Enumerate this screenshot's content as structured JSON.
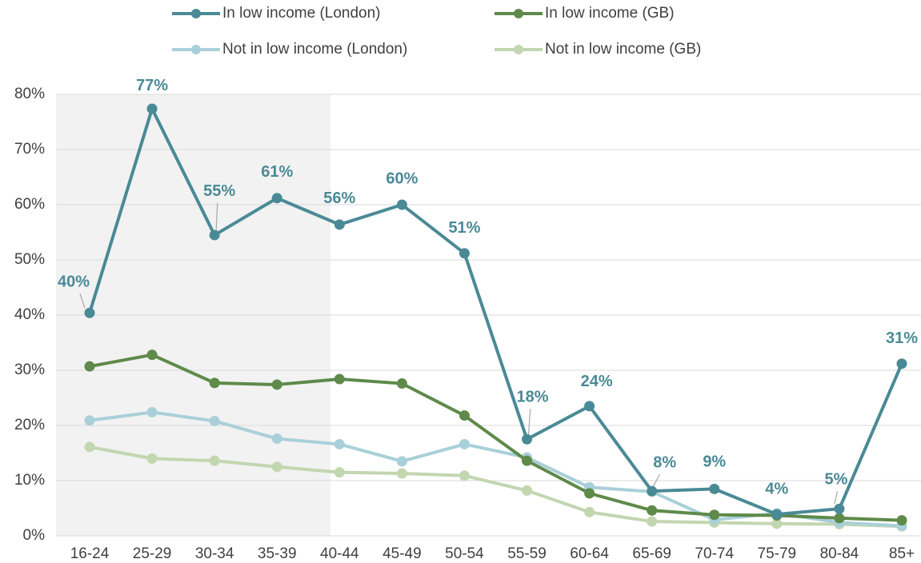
{
  "chart_data": {
    "type": "line",
    "categories": [
      "16-24",
      "25-29",
      "30-34",
      "35-39",
      "40-44",
      "45-49",
      "50-54",
      "55-59",
      "60-64",
      "65-69",
      "70-74",
      "75-79",
      "80-84",
      "85+"
    ],
    "series": [
      {
        "name": "In low income (London)",
        "color": "#4a8a96",
        "values": [
          40.4,
          77.4,
          54.5,
          61.2,
          56.4,
          60.0,
          51.2,
          17.5,
          23.5,
          8.1,
          8.5,
          3.9,
          4.9,
          31.2
        ],
        "value_labels": [
          "40%",
          "77%",
          "55%",
          "61%",
          "56%",
          "60%",
          "51%",
          "18%",
          "24%",
          "8%",
          "9%",
          "4%",
          "5%",
          "31%"
        ]
      },
      {
        "name": "In low income (GB)",
        "color": "#5e8a4a",
        "values": [
          30.7,
          32.8,
          27.7,
          27.4,
          28.4,
          27.6,
          21.8,
          13.6,
          7.7,
          4.6,
          3.8,
          3.7,
          3.2,
          2.8
        ]
      },
      {
        "name": "Not in low income (London)",
        "color": "#a9d0d9",
        "values": [
          20.9,
          22.4,
          20.8,
          17.6,
          16.6,
          13.5,
          16.6,
          14.2,
          8.8,
          8.0,
          2.9,
          4.1,
          2.4,
          1.8
        ]
      },
      {
        "name": "Not in low income (GB)",
        "color": "#c2d6b0",
        "values": [
          16.1,
          14.0,
          13.6,
          12.5,
          11.5,
          11.3,
          10.9,
          8.2,
          4.3,
          2.6,
          2.4,
          2.2,
          2.1,
          1.7
        ]
      }
    ],
    "ylim": [
      0,
      80
    ],
    "yticks": [
      {
        "value": 0,
        "label": "0%"
      },
      {
        "value": 10,
        "label": "10%"
      },
      {
        "value": 20,
        "label": "20%"
      },
      {
        "value": 30,
        "label": "30%"
      },
      {
        "value": 40,
        "label": "40%"
      },
      {
        "value": 50,
        "label": "50%"
      },
      {
        "value": 60,
        "label": "60%"
      },
      {
        "value": 70,
        "label": "70%"
      },
      {
        "value": 80,
        "label": "80%"
      }
    ],
    "grid": true
  }
}
